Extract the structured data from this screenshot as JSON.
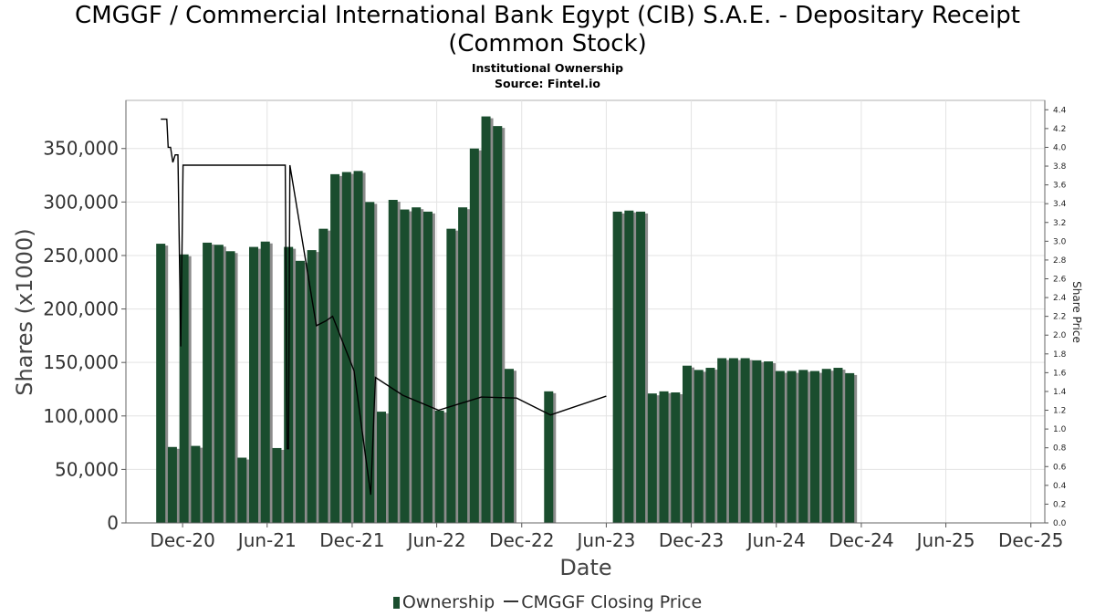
{
  "header": {
    "title_line1": "CMGGF / Commercial International Bank Egypt (CIB) S.A.E. - Depositary Receipt",
    "title_line2": "(Common Stock)",
    "subtitle": "Institutional Ownership",
    "source": "Source: Fintel.io"
  },
  "legend": {
    "ownership": "Ownership",
    "price": "CMGGF Closing Price"
  },
  "colors": {
    "bar": "#1a4d2e",
    "bar_shadow": "#8c8c8c",
    "line": "#000000",
    "grid": "#e3e3e3"
  },
  "chart_data": {
    "type": "bar",
    "xlabel": "Date",
    "ylabel": "Shares (x1000)",
    "y2label": "Share Price",
    "ylim": [
      0,
      395000
    ],
    "y2lim": [
      0,
      4.5
    ],
    "xlim": [
      "2020-08-01",
      "2025-12-31"
    ],
    "grid": true,
    "legend_position": "bottom",
    "x_ticks": [
      {
        "label": "Dec-20",
        "date": "2020-12-01"
      },
      {
        "label": "Jun-21",
        "date": "2021-06-01"
      },
      {
        "label": "Dec-21",
        "date": "2021-12-01"
      },
      {
        "label": "Jun-22",
        "date": "2022-06-01"
      },
      {
        "label": "Dec-22",
        "date": "2022-12-01"
      },
      {
        "label": "Jun-23",
        "date": "2023-06-01"
      },
      {
        "label": "Dec-23",
        "date": "2023-12-01"
      },
      {
        "label": "Jun-24",
        "date": "2024-06-01"
      },
      {
        "label": "Dec-24",
        "date": "2024-12-01"
      },
      {
        "label": "Jun-25",
        "date": "2025-06-01"
      },
      {
        "label": "Dec-25",
        "date": "2025-12-01"
      }
    ],
    "y_ticks": [
      {
        "label": "0",
        "value": 0
      },
      {
        "label": "50,000",
        "value": 50000
      },
      {
        "label": "100,000",
        "value": 100000
      },
      {
        "label": "150,000",
        "value": 150000
      },
      {
        "label": "200,000",
        "value": 200000
      },
      {
        "label": "250,000",
        "value": 250000
      },
      {
        "label": "300,000",
        "value": 300000
      },
      {
        "label": "350,000",
        "value": 350000
      }
    ],
    "y2_ticks": [
      "0.0",
      "0.2",
      "0.4",
      "0.6",
      "0.8",
      "1.0",
      "1.2",
      "1.4",
      "1.6",
      "1.8",
      "2.0",
      "2.2",
      "2.4",
      "2.6",
      "2.8",
      "3.0",
      "3.2",
      "3.4",
      "3.6",
      "3.8",
      "4.0",
      "4.2",
      "4.4"
    ],
    "series": [
      {
        "name": "Ownership",
        "type": "bar",
        "points": [
          {
            "date": "2020-10-15",
            "value": 261000
          },
          {
            "date": "2020-11-09",
            "value": 71000
          },
          {
            "date": "2020-12-04",
            "value": 251000
          },
          {
            "date": "2020-12-29",
            "value": 72000
          },
          {
            "date": "2021-01-23",
            "value": 262000
          },
          {
            "date": "2021-02-17",
            "value": 260000
          },
          {
            "date": "2021-03-14",
            "value": 254000
          },
          {
            "date": "2021-04-08",
            "value": 61000
          },
          {
            "date": "2021-05-03",
            "value": 258000
          },
          {
            "date": "2021-05-28",
            "value": 263000
          },
          {
            "date": "2021-06-22",
            "value": 70000
          },
          {
            "date": "2021-07-17",
            "value": 258000
          },
          {
            "date": "2021-08-11",
            "value": 245000
          },
          {
            "date": "2021-09-05",
            "value": 255000
          },
          {
            "date": "2021-09-30",
            "value": 275000
          },
          {
            "date": "2021-10-25",
            "value": 326000
          },
          {
            "date": "2021-11-19",
            "value": 328000
          },
          {
            "date": "2021-12-14",
            "value": 329000
          },
          {
            "date": "2022-01-08",
            "value": 300000
          },
          {
            "date": "2022-02-02",
            "value": 104000
          },
          {
            "date": "2022-02-27",
            "value": 302000
          },
          {
            "date": "2022-03-24",
            "value": 293000
          },
          {
            "date": "2022-04-18",
            "value": 295000
          },
          {
            "date": "2022-05-13",
            "value": 291000
          },
          {
            "date": "2022-06-07",
            "value": 105000
          },
          {
            "date": "2022-07-02",
            "value": 275000
          },
          {
            "date": "2022-07-27",
            "value": 295000
          },
          {
            "date": "2022-08-21",
            "value": 350000
          },
          {
            "date": "2022-09-15",
            "value": 380000
          },
          {
            "date": "2022-10-10",
            "value": 371000
          },
          {
            "date": "2022-11-04",
            "value": 144000
          },
          {
            "date": "2023-01-28",
            "value": 123000
          },
          {
            "date": "2023-06-25",
            "value": 291000
          },
          {
            "date": "2023-07-20",
            "value": 292000
          },
          {
            "date": "2023-08-14",
            "value": 291000
          },
          {
            "date": "2023-09-08",
            "value": 121000
          },
          {
            "date": "2023-10-03",
            "value": 123000
          },
          {
            "date": "2023-10-28",
            "value": 122000
          },
          {
            "date": "2023-11-22",
            "value": 147000
          },
          {
            "date": "2023-12-17",
            "value": 143000
          },
          {
            "date": "2024-01-11",
            "value": 145000
          },
          {
            "date": "2024-02-05",
            "value": 154000
          },
          {
            "date": "2024-03-01",
            "value": 154000
          },
          {
            "date": "2024-03-26",
            "value": 154000
          },
          {
            "date": "2024-04-20",
            "value": 152000
          },
          {
            "date": "2024-05-15",
            "value": 151000
          },
          {
            "date": "2024-06-09",
            "value": 142000
          },
          {
            "date": "2024-07-04",
            "value": 142000
          },
          {
            "date": "2024-07-29",
            "value": 143000
          },
          {
            "date": "2024-08-23",
            "value": 142000
          },
          {
            "date": "2024-09-17",
            "value": 144000
          },
          {
            "date": "2024-10-12",
            "value": 145000
          },
          {
            "date": "2024-11-06",
            "value": 140000
          }
        ]
      },
      {
        "name": "CMGGF Closing Price",
        "type": "line",
        "axis": "right",
        "points": [
          {
            "date": "2020-10-15",
            "value": 4.3
          },
          {
            "date": "2020-10-28",
            "value": 4.3
          },
          {
            "date": "2020-10-31",
            "value": 4.0
          },
          {
            "date": "2020-11-05",
            "value": 4.0
          },
          {
            "date": "2020-11-10",
            "value": 3.84
          },
          {
            "date": "2020-11-15",
            "value": 3.92
          },
          {
            "date": "2020-11-21",
            "value": 3.92
          },
          {
            "date": "2020-11-27",
            "value": 1.88
          },
          {
            "date": "2020-12-02",
            "value": 3.81
          },
          {
            "date": "2021-07-10",
            "value": 3.81
          },
          {
            "date": "2021-07-14",
            "value": 0.79
          },
          {
            "date": "2021-07-17",
            "value": 0.79
          },
          {
            "date": "2021-07-20",
            "value": 3.81
          },
          {
            "date": "2021-09-15",
            "value": 2.1
          },
          {
            "date": "2021-10-05",
            "value": 2.15
          },
          {
            "date": "2021-10-20",
            "value": 2.2
          },
          {
            "date": "2021-12-05",
            "value": 1.62
          },
          {
            "date": "2022-01-10",
            "value": 0.3
          },
          {
            "date": "2022-01-20",
            "value": 1.55
          },
          {
            "date": "2022-03-20",
            "value": 1.36
          },
          {
            "date": "2022-06-05",
            "value": 1.2
          },
          {
            "date": "2022-09-05",
            "value": 1.34
          },
          {
            "date": "2022-11-20",
            "value": 1.33
          },
          {
            "date": "2023-02-01",
            "value": 1.15
          },
          {
            "date": "2023-06-01",
            "value": 1.35
          }
        ]
      }
    ]
  }
}
